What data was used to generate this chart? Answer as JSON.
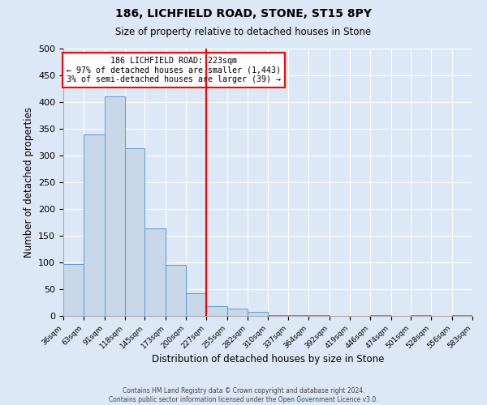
{
  "title": "186, LICHFIELD ROAD, STONE, ST15 8PY",
  "subtitle": "Size of property relative to detached houses in Stone",
  "xlabel": "Distribution of detached houses by size in Stone",
  "ylabel": "Number of detached properties",
  "bin_edges": [
    36,
    63,
    91,
    118,
    145,
    173,
    200,
    227,
    255,
    282,
    310,
    337,
    364,
    392,
    419,
    446,
    474,
    501,
    528,
    556,
    583
  ],
  "bar_heights": [
    97,
    340,
    410,
    314,
    163,
    96,
    43,
    18,
    13,
    8,
    2,
    1,
    1,
    0,
    0,
    2,
    0,
    1,
    0,
    1
  ],
  "bar_color": "#c8d8e8",
  "bar_edge_color": "#5b9bd5",
  "vline_x": 227,
  "vline_color": "red",
  "annotation_title": "186 LICHFIELD ROAD: 223sqm",
  "annotation_line1": "← 97% of detached houses are smaller (1,443)",
  "annotation_line2": "3% of semi-detached houses are larger (39) →",
  "annotation_box_color": "white",
  "annotation_box_edge_color": "red",
  "ylim": [
    0,
    500
  ],
  "yticks": [
    0,
    50,
    100,
    150,
    200,
    250,
    300,
    350,
    400,
    450,
    500
  ],
  "background_color": "#dce8f5",
  "footer_line1": "Contains HM Land Registry data © Crown copyright and database right 2024.",
  "footer_line2": "Contains public sector information licensed under the Open Government Licence v3.0."
}
